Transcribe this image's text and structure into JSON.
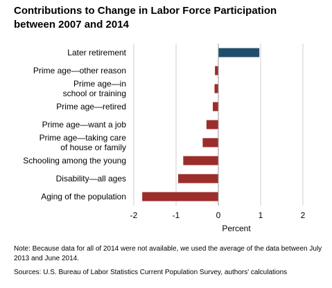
{
  "title": {
    "line1": "Contributions to Change in Labor Force Participation",
    "line2": "between 2007 and 2014"
  },
  "note": "Note:  Because data for all of 2014 were not available,  we used the average of the data between July 2013 and June 2014.",
  "sources": "Sources: U.S. Bureau of Labor Statistics Current Population  Survey, authors' calculations",
  "colors": {
    "positive": "#1f4e6b",
    "negative": "#9b2d2a",
    "grid": "#cccccc",
    "axis": "#999999"
  },
  "chart_data": {
    "type": "bar",
    "orientation": "horizontal",
    "categories": [
      "Later retirement",
      "Prime age—other reason",
      "Prime age—in school or training",
      "Prime age—retired",
      "Prime age—want a job",
      "Prime age—taking care of house or family",
      "Schooling among the young",
      "Disability—all ages",
      "Aging of the population"
    ],
    "category_lines": [
      [
        "Later retirement"
      ],
      [
        "Prime age—other reason"
      ],
      [
        "Prime age—in",
        "school or training"
      ],
      [
        "Prime age—retired"
      ],
      [
        "Prime age—want a job"
      ],
      [
        "Prime age—taking care",
        "of house or family"
      ],
      [
        "Schooling among the young"
      ],
      [
        "Disability—all ages"
      ],
      [
        "Aging of the population"
      ]
    ],
    "values": [
      0.97,
      -0.08,
      -0.09,
      -0.13,
      -0.28,
      -0.37,
      -0.83,
      -0.95,
      -1.8
    ],
    "xlim": [
      -2,
      2
    ],
    "xticks": [
      -2,
      -1,
      0,
      1,
      2
    ],
    "xtick_labels": [
      "-2",
      "-1",
      "0",
      "1",
      "2"
    ],
    "xlabel": "Percent",
    "ylabel": "",
    "grid": "vertical"
  }
}
